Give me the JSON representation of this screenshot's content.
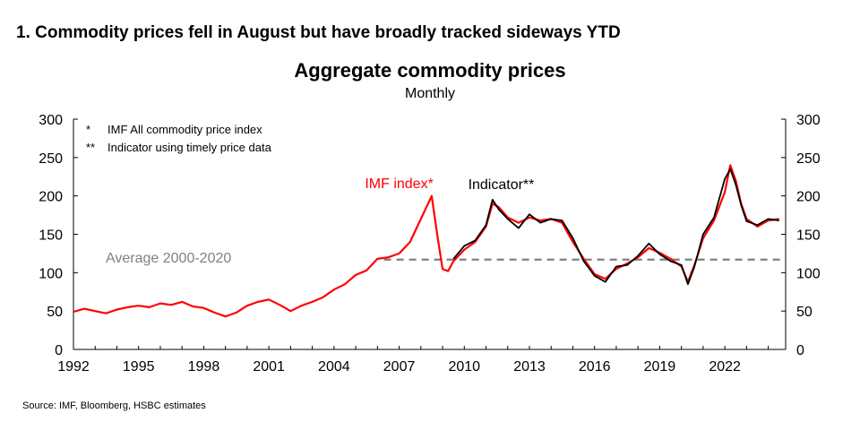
{
  "heading": "1. Commodity prices fell in August but have broadly tracked sideways YTD",
  "source": "Source: IMF, Bloomberg, HSBC estimates",
  "chart_data": {
    "type": "line",
    "title": "Aggregate commodity prices",
    "subtitle": "Monthly",
    "x_tick_labels": [
      "1992",
      "1995",
      "1998",
      "2001",
      "2004",
      "2007",
      "2010",
      "2013",
      "2016",
      "2019",
      "2022"
    ],
    "xlim": [
      1992,
      2024.8
    ],
    "ylim": [
      0,
      300
    ],
    "y_ticks": [
      0,
      50,
      100,
      150,
      200,
      250,
      300
    ],
    "y_tick_labels": [
      "0",
      "50",
      "100",
      "150",
      "200",
      "250",
      "300"
    ],
    "grid": false,
    "legend_placement": "top-left",
    "legend": [
      {
        "marker": "*",
        "text": "IMF All commodity price index"
      },
      {
        "marker": "**",
        "text": "Indicator using timely price data"
      }
    ],
    "series": [
      {
        "name": "IMF index*",
        "color": "#ff0000",
        "x": [
          1992.0,
          1992.5,
          1993.0,
          1993.5,
          1994.0,
          1994.5,
          1995.0,
          1995.5,
          1996.0,
          1996.5,
          1997.0,
          1997.5,
          1998.0,
          1998.5,
          1999.0,
          1999.5,
          2000.0,
          2000.5,
          2001.0,
          2001.5,
          2002.0,
          2002.5,
          2003.0,
          2003.5,
          2004.0,
          2004.5,
          2005.0,
          2005.5,
          2006.0,
          2006.5,
          2007.0,
          2007.5,
          2008.0,
          2008.5,
          2008.75,
          2009.0,
          2009.25,
          2009.5,
          2010.0,
          2010.5,
          2011.0,
          2011.3,
          2011.6,
          2012.0,
          2012.5,
          2013.0,
          2013.5,
          2014.0,
          2014.5,
          2015.0,
          2015.5,
          2016.0,
          2016.5,
          2017.0,
          2017.5,
          2018.0,
          2018.5,
          2019.0,
          2019.5,
          2020.0,
          2020.3,
          2020.6,
          2021.0,
          2021.5,
          2022.0,
          2022.25,
          2022.5,
          2022.75,
          2023.0,
          2023.5,
          2024.0,
          2024.5
        ],
        "values": [
          49,
          53,
          50,
          47,
          52,
          55,
          57,
          55,
          60,
          58,
          62,
          56,
          54,
          48,
          43,
          48,
          57,
          62,
          65,
          58,
          50,
          57,
          62,
          68,
          78,
          85,
          97,
          103,
          118,
          120,
          125,
          140,
          170,
          200,
          150,
          105,
          102,
          115,
          130,
          140,
          160,
          190,
          185,
          172,
          165,
          172,
          168,
          170,
          165,
          140,
          118,
          98,
          92,
          105,
          112,
          120,
          132,
          126,
          118,
          108,
          88,
          110,
          145,
          168,
          205,
          240,
          220,
          190,
          170,
          160,
          168,
          170
        ]
      },
      {
        "name": "Indicator**",
        "color": "#000000",
        "x": [
          2009.5,
          2010.0,
          2010.5,
          2011.0,
          2011.3,
          2011.6,
          2012.0,
          2012.5,
          2013.0,
          2013.5,
          2014.0,
          2014.5,
          2015.0,
          2015.5,
          2016.0,
          2016.5,
          2017.0,
          2017.5,
          2018.0,
          2018.5,
          2019.0,
          2019.5,
          2020.0,
          2020.3,
          2020.6,
          2021.0,
          2021.5,
          2022.0,
          2022.25,
          2022.5,
          2022.75,
          2023.0,
          2023.5,
          2024.0,
          2024.5
        ],
        "values": [
          118,
          135,
          142,
          162,
          195,
          182,
          170,
          158,
          176,
          165,
          170,
          168,
          145,
          115,
          96,
          88,
          108,
          110,
          122,
          138,
          124,
          115,
          110,
          85,
          108,
          150,
          172,
          222,
          235,
          215,
          188,
          167,
          162,
          170,
          168
        ]
      }
    ],
    "annotations": [
      {
        "text": "IMF index*",
        "color": "#ff0000",
        "x": 2007.0,
        "y": 210
      },
      {
        "text": "Indicator**",
        "color": "#000000",
        "x": 2011.7,
        "y": 209
      }
    ],
    "reference_line": {
      "label": "Average 2000-2020",
      "value": 117,
      "color": "#808080",
      "style": "dashed"
    }
  }
}
